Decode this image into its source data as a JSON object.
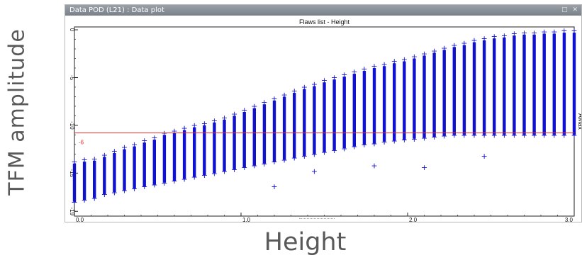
{
  "window": {
    "title": "Data POD (L21) : Data plot",
    "buttons": "□ ✕"
  },
  "outer_labels": {
    "y": "TFM amplitude",
    "x": "Height"
  },
  "chart_data": {
    "type": "scatter",
    "title": "Flaws list - Height",
    "xlabel": "Height",
    "ylabel": "TFM amplitude",
    "right_axis_label": "AMax",
    "xlim": [
      0,
      3.0
    ],
    "ylim": [
      -19.5,
      0.3
    ],
    "x_ticks": [
      "0.0",
      "1.0",
      "2.0",
      "3.0"
    ],
    "y_ticks": [
      "0",
      "-5",
      "-10",
      "-15",
      "-19"
    ],
    "threshold": {
      "value": -10.8,
      "label": "-6",
      "color": "#e03030"
    },
    "marker_color": "#1010d0",
    "columns": [
      {
        "x": 0.0,
        "top": -14.0,
        "bottom": -18.0
      },
      {
        "x": 0.06,
        "top": -13.8,
        "bottom": -17.8
      },
      {
        "x": 0.12,
        "top": -13.7,
        "bottom": -17.6
      },
      {
        "x": 0.18,
        "top": -13.3,
        "bottom": -17.2
      },
      {
        "x": 0.24,
        "top": -12.9,
        "bottom": -17.0
      },
      {
        "x": 0.3,
        "top": -12.5,
        "bottom": -16.8
      },
      {
        "x": 0.36,
        "top": -12.2,
        "bottom": -16.6
      },
      {
        "x": 0.42,
        "top": -11.8,
        "bottom": -16.4
      },
      {
        "x": 0.48,
        "top": -11.5,
        "bottom": -16.2
      },
      {
        "x": 0.54,
        "top": -11.0,
        "bottom": -16.0
      },
      {
        "x": 0.6,
        "top": -10.8,
        "bottom": -15.8
      },
      {
        "x": 0.66,
        "top": -10.5,
        "bottom": -15.6
      },
      {
        "x": 0.72,
        "top": -10.2,
        "bottom": -15.4
      },
      {
        "x": 0.78,
        "top": -10.0,
        "bottom": -15.2
      },
      {
        "x": 0.84,
        "top": -9.7,
        "bottom": -15.0
      },
      {
        "x": 0.9,
        "top": -9.4,
        "bottom": -14.8
      },
      {
        "x": 0.96,
        "top": -9.0,
        "bottom": -14.6
      },
      {
        "x": 1.02,
        "top": -8.6,
        "bottom": -14.4
      },
      {
        "x": 1.08,
        "top": -8.2,
        "bottom": -14.2
      },
      {
        "x": 1.14,
        "top": -7.8,
        "bottom": -14.0
      },
      {
        "x": 1.2,
        "top": -7.4,
        "bottom": -13.8
      },
      {
        "x": 1.26,
        "top": -7.0,
        "bottom": -13.6
      },
      {
        "x": 1.32,
        "top": -6.6,
        "bottom": -13.4
      },
      {
        "x": 1.38,
        "top": -6.2,
        "bottom": -13.2
      },
      {
        "x": 1.44,
        "top": -5.9,
        "bottom": -13.0
      },
      {
        "x": 1.5,
        "top": -5.5,
        "bottom": -12.8
      },
      {
        "x": 1.56,
        "top": -5.2,
        "bottom": -12.6
      },
      {
        "x": 1.62,
        "top": -4.9,
        "bottom": -12.4
      },
      {
        "x": 1.68,
        "top": -4.6,
        "bottom": -12.2
      },
      {
        "x": 1.74,
        "top": -4.3,
        "bottom": -12.0
      },
      {
        "x": 1.8,
        "top": -4.0,
        "bottom": -11.9
      },
      {
        "x": 1.86,
        "top": -3.8,
        "bottom": -11.7
      },
      {
        "x": 1.92,
        "top": -3.5,
        "bottom": -11.6
      },
      {
        "x": 1.98,
        "top": -3.3,
        "bottom": -11.5
      },
      {
        "x": 2.04,
        "top": -3.0,
        "bottom": -11.4
      },
      {
        "x": 2.1,
        "top": -2.7,
        "bottom": -11.3
      },
      {
        "x": 2.16,
        "top": -2.4,
        "bottom": -11.2
      },
      {
        "x": 2.22,
        "top": -2.1,
        "bottom": -11.1
      },
      {
        "x": 2.28,
        "top": -1.8,
        "bottom": -11.0
      },
      {
        "x": 2.34,
        "top": -1.6,
        "bottom": -11.0
      },
      {
        "x": 2.4,
        "top": -1.3,
        "bottom": -11.0
      },
      {
        "x": 2.46,
        "top": -1.1,
        "bottom": -11.0
      },
      {
        "x": 2.52,
        "top": -0.9,
        "bottom": -11.0
      },
      {
        "x": 2.58,
        "top": -0.8,
        "bottom": -11.0
      },
      {
        "x": 2.64,
        "top": -0.6,
        "bottom": -11.0
      },
      {
        "x": 2.7,
        "top": -0.5,
        "bottom": -11.0
      },
      {
        "x": 2.76,
        "top": -0.5,
        "bottom": -11.0
      },
      {
        "x": 2.82,
        "top": -0.4,
        "bottom": -11.0
      },
      {
        "x": 2.88,
        "top": -0.4,
        "bottom": -11.0
      },
      {
        "x": 2.94,
        "top": -0.3,
        "bottom": -11.0
      },
      {
        "x": 3.0,
        "top": -0.3,
        "bottom": -11.0
      }
    ],
    "outliers": [
      {
        "x": 1.2,
        "y": -16.4
      },
      {
        "x": 1.44,
        "y": -14.8
      },
      {
        "x": 1.8,
        "y": -14.2
      },
      {
        "x": 2.1,
        "y": -14.4
      },
      {
        "x": 2.46,
        "y": -13.2
      }
    ]
  }
}
